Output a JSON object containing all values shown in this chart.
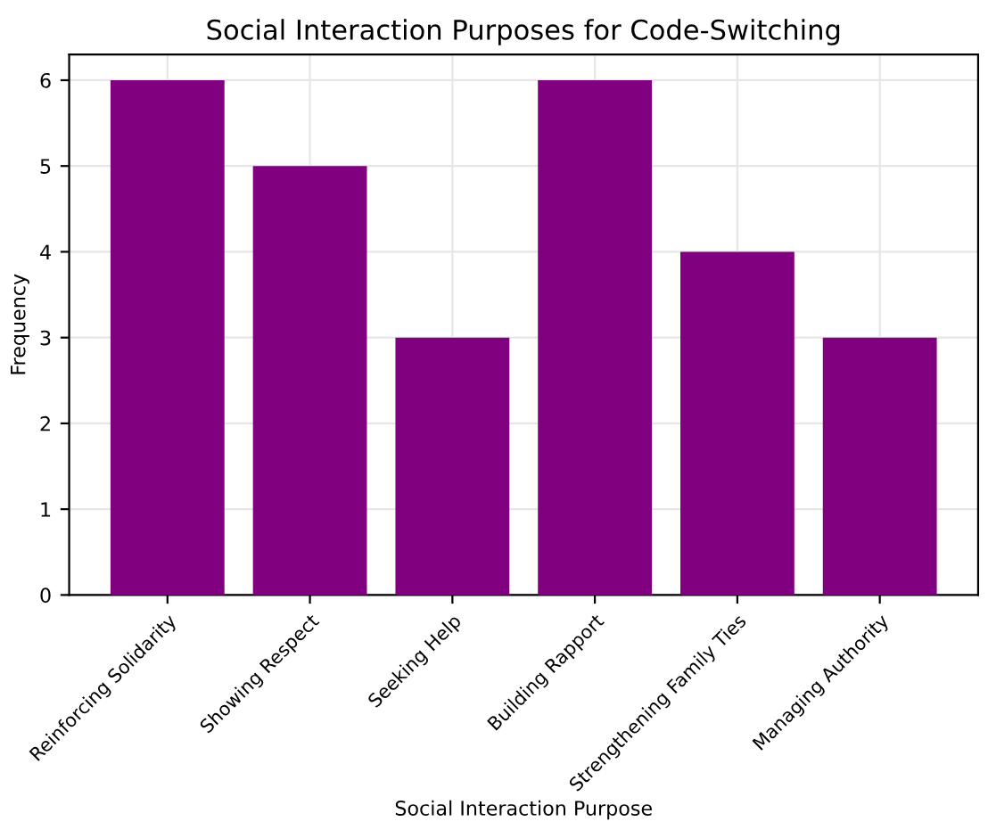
{
  "chart_data": {
    "type": "bar",
    "title": "Social Interaction Purposes for Code-Switching",
    "xlabel": "Social Interaction Purpose",
    "ylabel": "Frequency",
    "categories": [
      "Reinforcing Solidarity",
      "Showing Respect",
      "Seeking Help",
      "Building Rapport",
      "Strengthening Family Ties",
      "Managing Authority"
    ],
    "values": [
      6,
      5,
      3,
      6,
      4,
      3
    ],
    "color": "#800080",
    "ylim": [
      0,
      6.3
    ],
    "yticks": [
      0,
      1,
      2,
      3,
      4,
      5,
      6
    ],
    "grid": true
  }
}
